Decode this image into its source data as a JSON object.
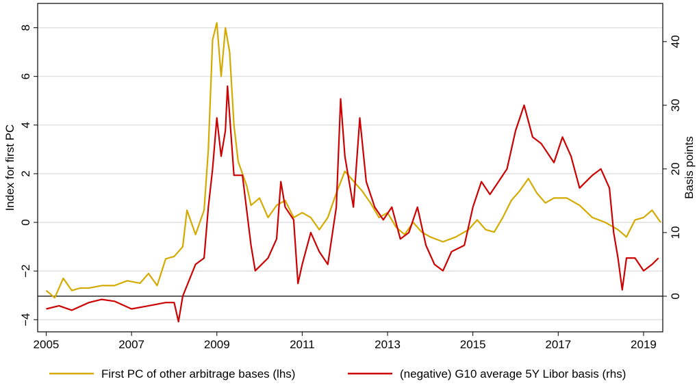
{
  "chart_data": {
    "type": "line",
    "y_label": "Index for first PC",
    "y2_label": "Basis points",
    "xlim": [
      2004.8,
      2019.45
    ],
    "xticks": [
      2005,
      2007,
      2009,
      2011,
      2013,
      2015,
      2017,
      2019
    ],
    "ylim": [
      -4.5,
      9.0
    ],
    "yticks": [
      {
        "value": -4,
        "label": "−4"
      },
      {
        "value": -2,
        "label": "−2"
      },
      0,
      2,
      4,
      6,
      8
    ],
    "y2lim": [
      -5.6,
      46
    ],
    "y2ticks": [
      0,
      10,
      20,
      30,
      40
    ],
    "grid": true,
    "hline_y2": 0,
    "legend": "bottom",
    "series": [
      {
        "name": "First PC of other arbitrage bases (lhs)",
        "color": "#d4aa00",
        "axis": "y",
        "x": [
          2005.0,
          2005.2,
          2005.4,
          2005.6,
          2005.8,
          2006.0,
          2006.3,
          2006.6,
          2006.9,
          2007.2,
          2007.4,
          2007.6,
          2007.8,
          2008.0,
          2008.2,
          2008.3,
          2008.5,
          2008.7,
          2008.8,
          2008.9,
          2009.0,
          2009.1,
          2009.2,
          2009.3,
          2009.4,
          2009.5,
          2009.7,
          2009.8,
          2010.0,
          2010.2,
          2010.4,
          2010.6,
          2010.8,
          2011.0,
          2011.2,
          2011.4,
          2011.6,
          2011.8,
          2012.0,
          2012.2,
          2012.4,
          2012.6,
          2012.8,
          2013.0,
          2013.2,
          2013.4,
          2013.6,
          2013.8,
          2014.0,
          2014.3,
          2014.6,
          2014.9,
          2015.1,
          2015.3,
          2015.5,
          2015.7,
          2015.9,
          2016.1,
          2016.3,
          2016.5,
          2016.7,
          2016.9,
          2017.2,
          2017.5,
          2017.8,
          2018.1,
          2018.4,
          2018.6,
          2018.8,
          2019.0,
          2019.2,
          2019.4
        ],
        "values": [
          -2.8,
          -3.1,
          -2.3,
          -2.8,
          -2.7,
          -2.7,
          -2.6,
          -2.6,
          -2.4,
          -2.5,
          -2.1,
          -2.6,
          -1.5,
          -1.4,
          -1.0,
          0.5,
          -0.5,
          0.5,
          3,
          7.5,
          8.2,
          6,
          8,
          7,
          4,
          2.5,
          1.5,
          0.7,
          1.0,
          0.2,
          0.7,
          0.9,
          0.2,
          0.4,
          0.2,
          -0.3,
          0.2,
          1.2,
          2.1,
          1.7,
          1.3,
          0.8,
          0.2,
          0.4,
          -0.2,
          -0.5,
          0.0,
          -0.4,
          -0.6,
          -0.8,
          -0.6,
          -0.3,
          0.1,
          -0.3,
          -0.4,
          0.2,
          0.9,
          1.3,
          1.8,
          1.2,
          0.8,
          1.0,
          1.0,
          0.7,
          0.2,
          0.0,
          -0.3,
          -0.6,
          0.1,
          0.2,
          0.5,
          0.0
        ]
      },
      {
        "name": "(negative) G10 average 5Y Libor basis (rhs)",
        "color": "#cc0000",
        "axis": "y2",
        "x": [
          2005.0,
          2005.3,
          2005.6,
          2006.0,
          2006.3,
          2006.6,
          2007.0,
          2007.4,
          2007.8,
          2008.0,
          2008.1,
          2008.2,
          2008.5,
          2008.7,
          2008.8,
          2008.9,
          2009.0,
          2009.1,
          2009.2,
          2009.25,
          2009.4,
          2009.6,
          2009.8,
          2009.9,
          2010.2,
          2010.4,
          2010.5,
          2010.6,
          2010.8,
          2010.9,
          2011.0,
          2011.2,
          2011.4,
          2011.6,
          2011.8,
          2011.9,
          2012.0,
          2012.2,
          2012.35,
          2012.5,
          2012.7,
          2012.9,
          2013.1,
          2013.3,
          2013.5,
          2013.7,
          2013.9,
          2014.1,
          2014.3,
          2014.5,
          2014.8,
          2015.0,
          2015.2,
          2015.4,
          2015.6,
          2015.8,
          2016.0,
          2016.2,
          2016.4,
          2016.6,
          2016.9,
          2017.1,
          2017.3,
          2017.5,
          2017.8,
          2018.0,
          2018.2,
          2018.3,
          2018.4,
          2018.5,
          2018.6,
          2018.8,
          2019.0,
          2019.2,
          2019.35
        ],
        "values": [
          -2,
          -1.5,
          -2.2,
          -1,
          -0.5,
          -0.8,
          -2,
          -1.5,
          -1,
          -1.0,
          -4,
          0,
          5,
          6,
          14,
          20,
          28,
          22,
          26,
          33,
          19,
          19,
          8,
          4,
          6,
          9,
          18,
          14,
          12,
          2,
          5,
          10,
          7,
          5,
          14,
          31,
          22,
          14,
          28,
          18,
          14,
          12,
          14,
          9,
          10,
          14,
          8,
          5,
          4,
          7,
          8,
          14,
          18,
          16,
          18,
          20,
          26,
          30,
          25,
          24,
          21,
          25,
          22,
          17,
          19,
          20,
          17,
          10,
          6,
          1,
          6,
          6,
          4,
          5,
          6
        ]
      }
    ]
  }
}
